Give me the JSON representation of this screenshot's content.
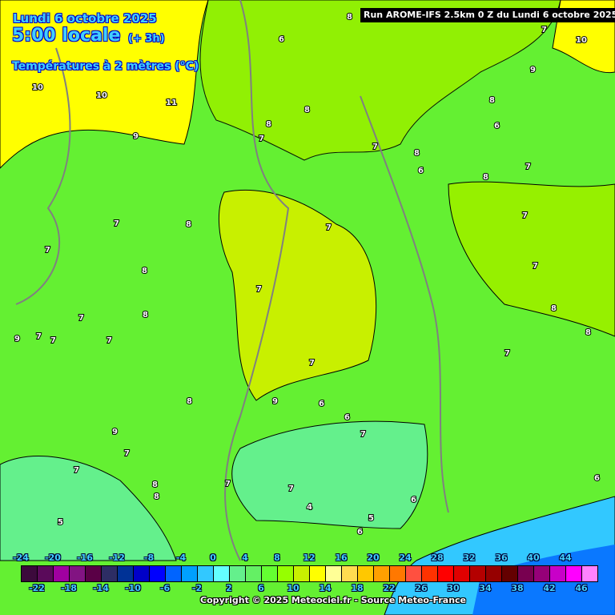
{
  "header": {
    "date": "Lundi 6 octobre 2025",
    "time": "5:00 locale",
    "step": "(+ 3h)",
    "parameter": "Températures à 2 mètres (°C)",
    "run": "Run AROME-IFS 2.5km 0 Z du Lundi 6 octobre 2025"
  },
  "legend": {
    "values": [
      -24,
      -22,
      -20,
      -18,
      -16,
      -14,
      -12,
      -10,
      -8,
      -6,
      -4,
      -2,
      0,
      2,
      4,
      6,
      8,
      10,
      12,
      14,
      16,
      18,
      20,
      22,
      24,
      26,
      28,
      30,
      32,
      34,
      36,
      38,
      40,
      42,
      44,
      46
    ],
    "colors": [
      "#3c0a3c",
      "#5a0a5a",
      "#a000a0",
      "#821482",
      "#5a0046",
      "#2d2d64",
      "#003296",
      "#0000c8",
      "#0000ff",
      "#0064ff",
      "#00a0ff",
      "#32c8ff",
      "#64ffff",
      "#64f08c",
      "#64f064",
      "#64ff32",
      "#96ff00",
      "#c8f000",
      "#ffff00",
      "#ffff96",
      "#ffdc50",
      "#ffc800",
      "#ffa000",
      "#ff7800",
      "#ff5040",
      "#ff3200",
      "#ff0000",
      "#e10000",
      "#b40000",
      "#960000",
      "#640000",
      "#780050",
      "#960078",
      "#c800c8",
      "#ff00ff",
      "#ff82ff"
    ],
    "top_labels": [
      "-24",
      "-20",
      "-16",
      "-12",
      "-8",
      "-4",
      "0",
      "4",
      "8",
      "12",
      "16",
      "20",
      "24",
      "28",
      "32",
      "36",
      "40",
      "44"
    ],
    "bottom_labels": [
      "-22",
      "-18",
      "-14",
      "-10",
      "-6",
      "-2",
      "2",
      "6",
      "10",
      "14",
      "18",
      "22",
      "26",
      "30",
      "34",
      "38",
      "42",
      "46"
    ]
  },
  "contour_labels": [
    "8",
    "6",
    "7",
    "10",
    "10",
    "9",
    "8",
    "6",
    "7",
    "11",
    "10",
    "9",
    "8",
    "8",
    "7",
    "8",
    "6",
    "7",
    "8",
    "7",
    "8",
    "7",
    "7",
    "7",
    "8",
    "7",
    "7",
    "7",
    "7",
    "8",
    "9",
    "8",
    "7",
    "7",
    "7",
    "7",
    "8",
    "8",
    "9",
    "6",
    "6",
    "7",
    "7",
    "8",
    "8",
    "7",
    "6",
    "5",
    "6",
    "4",
    "5",
    "6",
    "9",
    "7",
    "7"
  ],
  "copyright": "Copyright © 2025 Meteociel.fr - Source Meteo-France"
}
